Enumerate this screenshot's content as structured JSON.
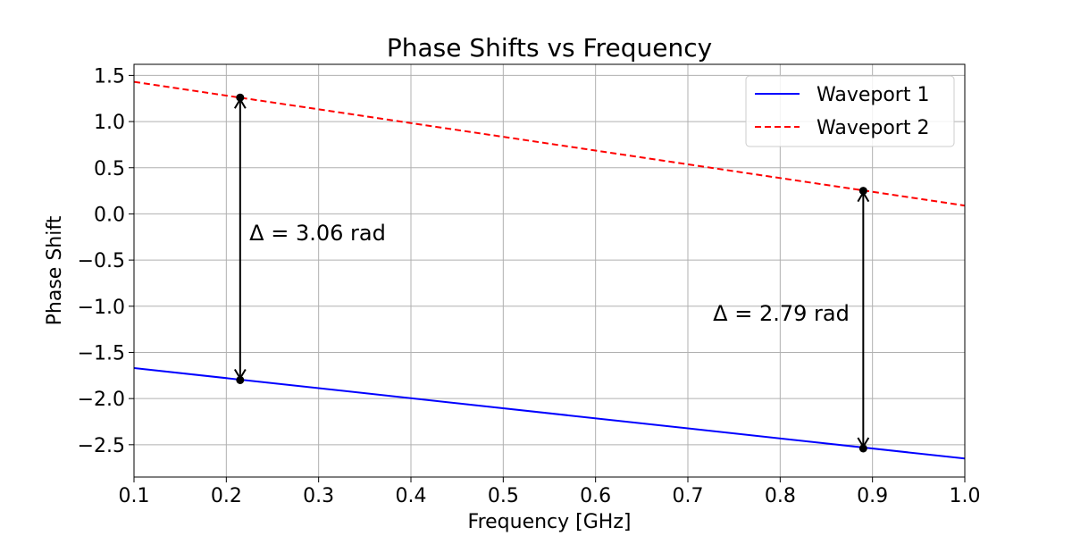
{
  "chart_data": {
    "type": "line",
    "title": "Phase Shifts vs Frequency",
    "xlabel": "Frequency [GHz]",
    "ylabel": "Phase Shift",
    "xlim": [
      0.1,
      1.0
    ],
    "ylim": [
      -2.85,
      1.62
    ],
    "xticks": [
      0.1,
      0.2,
      0.3,
      0.4,
      0.5,
      0.6,
      0.7,
      0.8,
      0.9,
      1.0
    ],
    "xtick_labels": [
      "0.1",
      "0.2",
      "0.3",
      "0.4",
      "0.5",
      "0.6",
      "0.7",
      "0.8",
      "0.9",
      "1.0"
    ],
    "yticks": [
      -2.5,
      -2.0,
      -1.5,
      -1.0,
      -0.5,
      0.0,
      0.5,
      1.0,
      1.5
    ],
    "ytick_labels": [
      "−2.5",
      "−2.0",
      "−1.5",
      "−1.0",
      "−0.5",
      "0.0",
      "0.5",
      "1.0",
      "1.5"
    ],
    "grid": true,
    "legend_position": "top-right",
    "series": [
      {
        "name": "Waveport 1",
        "color": "#0000ff",
        "style": "solid",
        "x": [
          0.1,
          1.0
        ],
        "y": [
          -1.67,
          -2.65
        ]
      },
      {
        "name": "Waveport 2",
        "color": "#ff0000",
        "style": "dashed",
        "x": [
          0.1,
          1.0
        ],
        "y": [
          1.43,
          0.09
        ]
      }
    ],
    "annotations": [
      {
        "x": 0.215,
        "y_top": 1.26,
        "y_bottom": -1.8,
        "label": "Δ =  3.06 rad",
        "label_x": 0.225,
        "label_y": -0.2,
        "label_align": "start"
      },
      {
        "x": 0.89,
        "y_top": 0.25,
        "y_bottom": -2.54,
        "label": "Δ =  2.79 rad",
        "label_x": 0.875,
        "label_y": -1.07,
        "label_align": "end"
      }
    ]
  }
}
